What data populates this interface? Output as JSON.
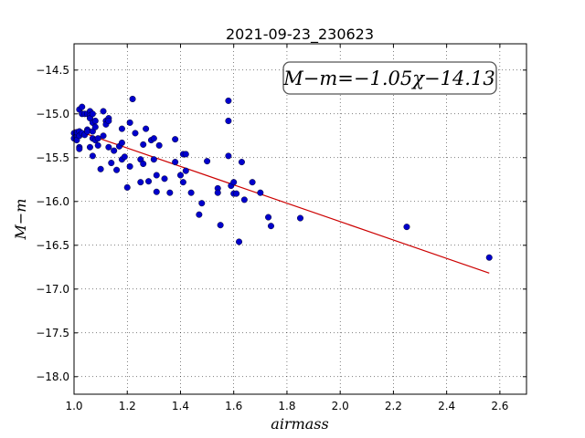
{
  "chart_data": {
    "type": "scatter",
    "title": "2021-09-23_230623",
    "xlabel": "airmass",
    "ylabel": "M−m",
    "xlim": [
      1.0,
      2.7
    ],
    "ylim": [
      -18.2,
      -14.2
    ],
    "inverted_y": false,
    "grid": true,
    "xticks": [
      1.0,
      1.2,
      1.4,
      1.6,
      1.8,
      2.0,
      2.2,
      2.4,
      2.6
    ],
    "xtick_labels": [
      "1.0",
      "1.2",
      "1.4",
      "1.6",
      "1.8",
      "2.0",
      "2.2",
      "2.4",
      "2.6"
    ],
    "yticks": [
      -14.5,
      -15.0,
      -15.5,
      -16.0,
      -16.5,
      -17.0,
      -17.5,
      -18.0
    ],
    "ytick_labels": [
      "−14.5",
      "−15.0",
      "−15.5",
      "−16.0",
      "−16.5",
      "−17.0",
      "−17.5",
      "−18.0"
    ],
    "annotation": "M−m=−1.05χ−14.13",
    "point_color": "#0000cc",
    "fit_color": "#cc0000",
    "fit": {
      "slope": -1.05,
      "intercept": -14.13,
      "x_range": [
        1.0,
        2.56
      ]
    },
    "points": [
      [
        1.0,
        -15.22
      ],
      [
        1.0,
        -15.28
      ],
      [
        1.01,
        -15.25
      ],
      [
        1.01,
        -15.3
      ],
      [
        1.01,
        -15.21
      ],
      [
        1.02,
        -14.95
      ],
      [
        1.02,
        -15.2
      ],
      [
        1.02,
        -15.25
      ],
      [
        1.02,
        -15.38
      ],
      [
        1.02,
        -15.4
      ],
      [
        1.03,
        -14.92
      ],
      [
        1.03,
        -15.0
      ],
      [
        1.03,
        -15.22
      ],
      [
        1.04,
        -15.0
      ],
      [
        1.04,
        -15.24
      ],
      [
        1.05,
        -15.0
      ],
      [
        1.05,
        -15.18
      ],
      [
        1.05,
        -15.2
      ],
      [
        1.06,
        -14.97
      ],
      [
        1.06,
        -15.02
      ],
      [
        1.06,
        -15.05
      ],
      [
        1.06,
        -15.38
      ],
      [
        1.07,
        -15.0
      ],
      [
        1.07,
        -15.1
      ],
      [
        1.07,
        -15.2
      ],
      [
        1.07,
        -15.28
      ],
      [
        1.07,
        -15.48
      ],
      [
        1.08,
        -15.15
      ],
      [
        1.08,
        -15.3
      ],
      [
        1.08,
        -15.08
      ],
      [
        1.09,
        -15.28
      ],
      [
        1.09,
        -15.36
      ],
      [
        1.1,
        -15.63
      ],
      [
        1.11,
        -14.97
      ],
      [
        1.11,
        -15.25
      ],
      [
        1.12,
        -15.08
      ],
      [
        1.12,
        -15.12
      ],
      [
        1.13,
        -15.05
      ],
      [
        1.13,
        -15.08
      ],
      [
        1.13,
        -15.38
      ],
      [
        1.14,
        -15.56
      ],
      [
        1.15,
        -15.42
      ],
      [
        1.16,
        -15.64
      ],
      [
        1.17,
        -15.37
      ],
      [
        1.18,
        -15.33
      ],
      [
        1.18,
        -15.52
      ],
      [
        1.18,
        -15.17
      ],
      [
        1.19,
        -15.49
      ],
      [
        1.2,
        -15.84
      ],
      [
        1.21,
        -15.6
      ],
      [
        1.21,
        -15.1
      ],
      [
        1.22,
        -14.83
      ],
      [
        1.23,
        -15.22
      ],
      [
        1.25,
        -15.52
      ],
      [
        1.25,
        -15.78
      ],
      [
        1.26,
        -15.57
      ],
      [
        1.26,
        -15.35
      ],
      [
        1.27,
        -15.17
      ],
      [
        1.28,
        -15.77
      ],
      [
        1.29,
        -15.3
      ],
      [
        1.3,
        -15.52
      ],
      [
        1.3,
        -15.28
      ],
      [
        1.31,
        -15.7
      ],
      [
        1.31,
        -15.89
      ],
      [
        1.32,
        -15.36
      ],
      [
        1.34,
        -15.74
      ],
      [
        1.36,
        -15.9
      ],
      [
        1.38,
        -15.29
      ],
      [
        1.38,
        -15.55
      ],
      [
        1.4,
        -15.7
      ],
      [
        1.41,
        -15.46
      ],
      [
        1.41,
        -15.78
      ],
      [
        1.42,
        -15.65
      ],
      [
        1.42,
        -15.46
      ],
      [
        1.44,
        -15.9
      ],
      [
        1.47,
        -16.15
      ],
      [
        1.48,
        -16.02
      ],
      [
        1.5,
        -15.54
      ],
      [
        1.54,
        -15.85
      ],
      [
        1.54,
        -15.9
      ],
      [
        1.55,
        -16.27
      ],
      [
        1.58,
        -15.48
      ],
      [
        1.58,
        -14.85
      ],
      [
        1.58,
        -15.08
      ],
      [
        1.59,
        -15.82
      ],
      [
        1.6,
        -15.78
      ],
      [
        1.6,
        -15.91
      ],
      [
        1.61,
        -15.91
      ],
      [
        1.62,
        -16.46
      ],
      [
        1.63,
        -15.55
      ],
      [
        1.64,
        -15.98
      ],
      [
        1.67,
        -15.78
      ],
      [
        1.7,
        -15.9
      ],
      [
        1.73,
        -16.18
      ],
      [
        1.74,
        -16.28
      ],
      [
        1.85,
        -16.19
      ],
      [
        2.25,
        -16.29
      ],
      [
        2.56,
        -16.64
      ]
    ]
  }
}
